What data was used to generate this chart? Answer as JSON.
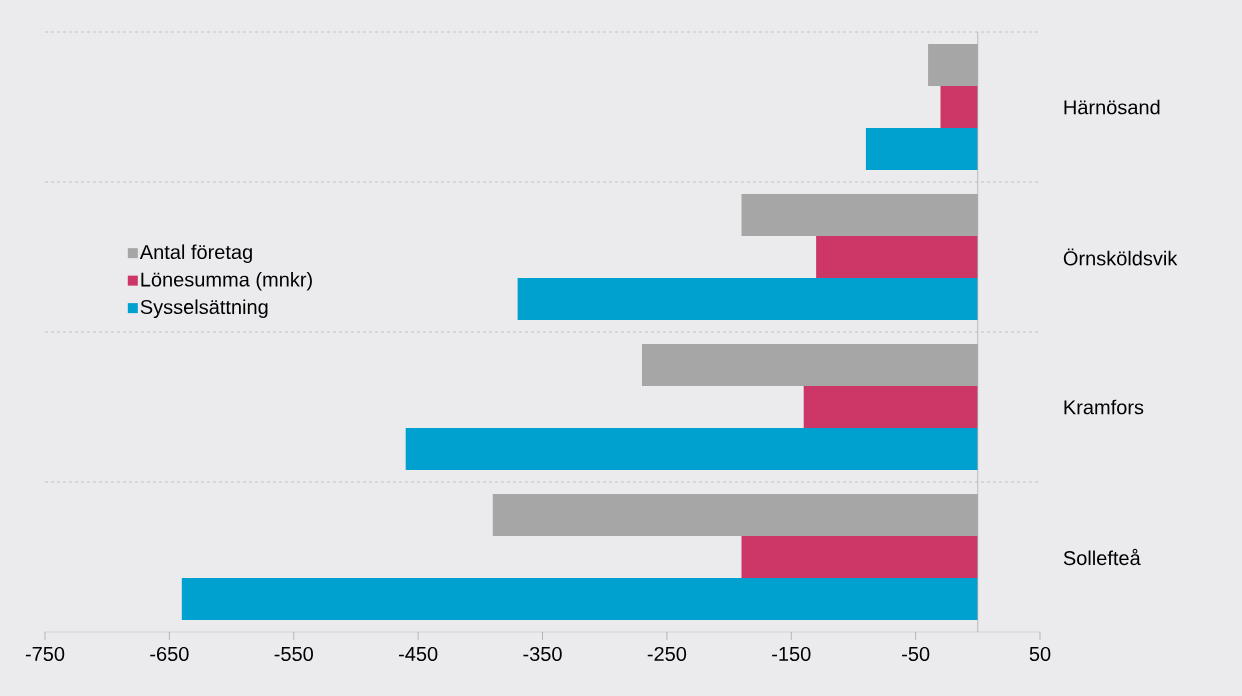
{
  "chart_data": {
    "type": "bar",
    "orientation": "horizontal",
    "categories": [
      "Härnösand",
      "Örnsköldsvik",
      "Kramfors",
      "Sollefteå"
    ],
    "series": [
      {
        "name": "Antal företag",
        "color": "#a6a6a6",
        "values": [
          -40,
          -190,
          -270,
          -390
        ]
      },
      {
        "name": "Lönesumma (mnkr)",
        "color": "#cc3768",
        "values": [
          -30,
          -130,
          -140,
          -190
        ]
      },
      {
        "name": "Sysselsättning",
        "color": "#00a0cf",
        "values": [
          -90,
          -370,
          -460,
          -640
        ]
      }
    ],
    "xlim": [
      -750,
      50
    ],
    "xticks": [
      -750,
      -650,
      -550,
      -450,
      -350,
      -250,
      -150,
      -50,
      50
    ],
    "grid": "y",
    "legend": "left"
  }
}
